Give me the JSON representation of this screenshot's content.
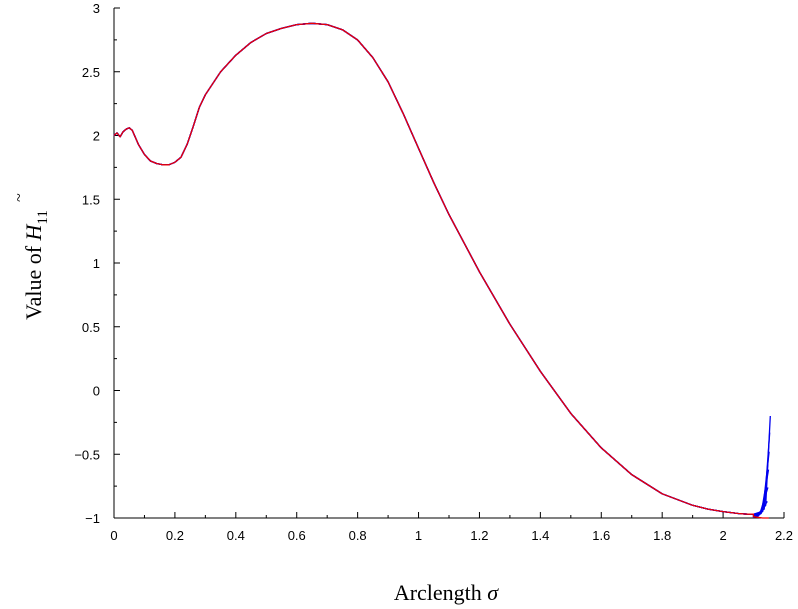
{
  "chart_data": {
    "type": "line",
    "xlabel": "Arclength",
    "xlabel_symbol": "σ",
    "ylabel": "Value of",
    "ylabel_symbol": "H",
    "ylabel_subscript": "11",
    "xlim": [
      0,
      2.2
    ],
    "ylim": [
      -1,
      3
    ],
    "xticks": [
      "0",
      "0.2",
      "0.4",
      "0.6",
      "0.8",
      "1",
      "1.2",
      "1.4",
      "1.6",
      "1.8",
      "2",
      "2.2"
    ],
    "yticks": [
      "−1",
      "−0.5",
      "0",
      "0.5",
      "1",
      "1.5",
      "2",
      "2.5",
      "3"
    ],
    "xtick_values": [
      0,
      0.2,
      0.4,
      0.6,
      0.8,
      1.0,
      1.2,
      1.4,
      1.6,
      1.8,
      2.0,
      2.2
    ],
    "ytick_values": [
      -1,
      -0.5,
      0,
      0.5,
      1,
      1.5,
      2,
      2.5,
      3
    ],
    "grid": false,
    "colors": {
      "blue": "#0000ee",
      "red": "#ee0000"
    },
    "base_curve": {
      "x": [
        0,
        0.01,
        0.02,
        0.03,
        0.04,
        0.05,
        0.06,
        0.08,
        0.1,
        0.12,
        0.14,
        0.16,
        0.18,
        0.2,
        0.22,
        0.24,
        0.26,
        0.28,
        0.3,
        0.35,
        0.4,
        0.45,
        0.5,
        0.55,
        0.6,
        0.65,
        0.7,
        0.75,
        0.8,
        0.85,
        0.9,
        0.95,
        1.0,
        1.05,
        1.1,
        1.2,
        1.3,
        1.4,
        1.5,
        1.6,
        1.7,
        1.8,
        1.9,
        1.95,
        2.0,
        2.05,
        2.08,
        2.1
      ],
      "y": [
        2.0,
        2.02,
        1.99,
        2.03,
        2.05,
        2.06,
        2.04,
        1.93,
        1.85,
        1.8,
        1.78,
        1.77,
        1.77,
        1.79,
        1.83,
        1.93,
        2.07,
        2.22,
        2.32,
        2.5,
        2.63,
        2.73,
        2.8,
        2.84,
        2.87,
        2.88,
        2.87,
        2.83,
        2.75,
        2.61,
        2.42,
        2.17,
        1.9,
        1.63,
        1.38,
        0.93,
        0.52,
        0.15,
        -0.18,
        -0.45,
        -0.66,
        -0.81,
        -0.9,
        -0.93,
        -0.95,
        -0.965,
        -0.97,
        -0.97
      ]
    },
    "series": [
      {
        "color": "blue",
        "tail_x": [
          2.12,
          2.14,
          2.155
        ],
        "tail_y": [
          -0.955,
          -0.9,
          -0.2
        ]
      },
      {
        "color": "blue",
        "tail_x": [
          2.115,
          2.135,
          2.153
        ],
        "tail_y": [
          -0.965,
          -0.93,
          -0.33
        ]
      },
      {
        "color": "blue",
        "tail_x": [
          2.11,
          2.13,
          2.151
        ],
        "tail_y": [
          -0.975,
          -0.95,
          -0.48
        ]
      },
      {
        "color": "blue",
        "tail_x": [
          2.105,
          2.125,
          2.149
        ],
        "tail_y": [
          -0.985,
          -0.965,
          -0.62
        ]
      },
      {
        "color": "blue",
        "tail_x": [
          2.1,
          2.12,
          2.147
        ],
        "tail_y": [
          -0.99,
          -0.975,
          -0.76
        ]
      },
      {
        "color": "blue",
        "tail_x": [
          2.1,
          2.115,
          2.145
        ],
        "tail_y": [
          -0.995,
          -0.985,
          -0.87
        ]
      },
      {
        "color": "red",
        "tail_x": [
          2.1,
          2.13,
          2.15
        ],
        "tail_y": [
          -0.99,
          -1.0,
          -1.0
        ]
      }
    ]
  }
}
